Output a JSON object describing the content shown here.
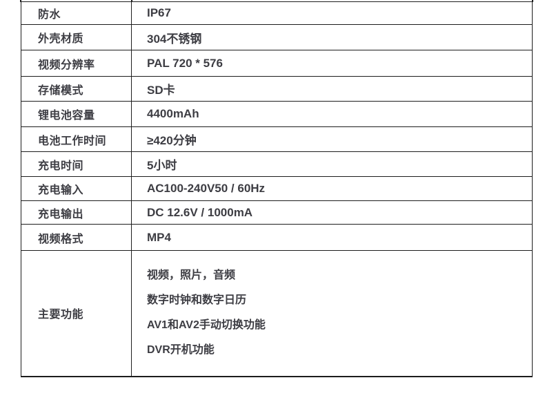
{
  "colors": {
    "border": "#1c1c1c",
    "text": "#3d3d43",
    "background": "#ffffff"
  },
  "spec_table": {
    "rows": [
      {
        "label": "防水",
        "value": "IP67"
      },
      {
        "label": "外壳材质",
        "value": "304不锈钢"
      },
      {
        "label": "视频分辨率",
        "value": "PAL 720 * 576"
      },
      {
        "label": "存储模式",
        "value": "SD卡"
      },
      {
        "label": "锂电池容量",
        "value": "4400mAh"
      },
      {
        "label": "电池工作时间",
        "value": "≥420分钟"
      },
      {
        "label": "充电时间",
        "value": "5小时"
      },
      {
        "label": "充电输入",
        "value": "AC100-240V50 / 60Hz"
      },
      {
        "label": "充电输出",
        "value": "DC 12.6V / 1000mA"
      },
      {
        "label": "视频格式",
        "value": "MP4"
      }
    ],
    "multiline_row": {
      "label": "主要功能",
      "lines": [
        "视频，照片，音频",
        "数字时钟和数字日历",
        "AV1和AV2手动切换功能",
        "DVR开机功能"
      ]
    }
  }
}
